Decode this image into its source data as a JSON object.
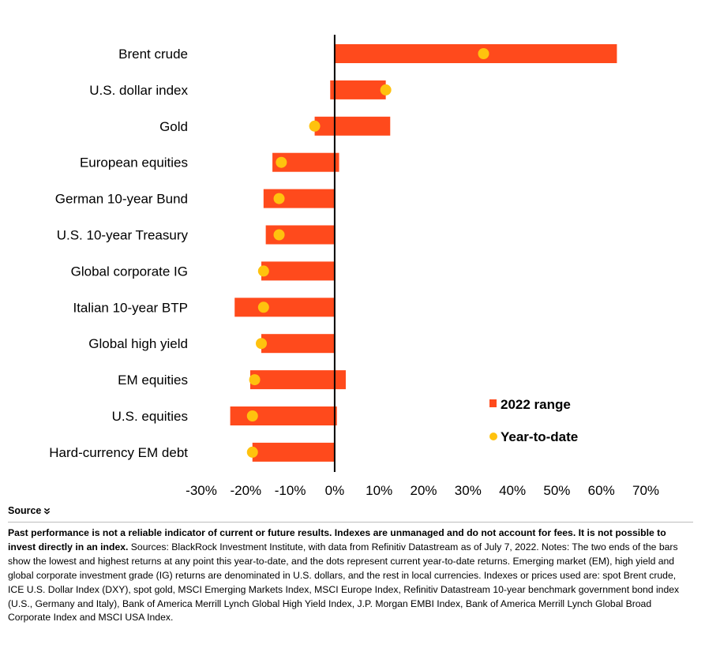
{
  "chart_data": {
    "type": "bar",
    "orientation": "horizontal",
    "subtype": "floating-range-with-dots",
    "categories": [
      "Brent crude",
      "U.S. dollar index",
      "Gold",
      "European equities",
      "German 10-year Bund",
      "U.S. 10-year Treasury",
      "Global corporate IG",
      "Italian 10-year BTP",
      "Global high yield",
      "EM equities",
      "U.S. equities",
      "Hard-currency EM debt"
    ],
    "series": [
      {
        "name": "2022 range",
        "type": "range-bar",
        "color": "#ff4a1c",
        "low": [
          0,
          -1,
          -4.5,
          -14,
          -16,
          -15.5,
          -16.5,
          -22.5,
          -16.5,
          -19,
          -23.5,
          -18.5
        ],
        "high": [
          63.5,
          11.5,
          12.5,
          1,
          0,
          0,
          0,
          0,
          0,
          2.5,
          0.5,
          0
        ]
      },
      {
        "name": "Year-to-date",
        "type": "dot",
        "color": "#ffc20e",
        "values": [
          33.5,
          11.5,
          -4.5,
          -12,
          -12.5,
          -12.5,
          -16,
          -16,
          -16.5,
          -18,
          -18.5,
          -18.5
        ]
      }
    ],
    "xlim": [
      -30,
      70
    ],
    "xticks": [
      -30,
      -20,
      -10,
      0,
      10,
      20,
      30,
      40,
      50,
      60,
      70
    ],
    "xtick_labels": [
      "-30%",
      "-20%",
      "-10%",
      "0%",
      "10%",
      "20%",
      "30%",
      "40%",
      "50%",
      "60%",
      "70%"
    ],
    "title": "",
    "xlabel": "",
    "ylabel": "",
    "grid": false,
    "legend_position": "bottom-right",
    "zero_line_color": "#000000"
  },
  "footer": {
    "source_label": "Source",
    "disclaimer": "Past performance is not a reliable indicator of current or future results. Indexes are unmanaged and do not account for fees. It is not possible to invest directly in an index.",
    "notes": " Sources: BlackRock Investment Institute, with data from Refinitiv Datastream as of July 7, 2022. Notes: The two ends of the bars show the lowest and highest returns at any point this year-to-date, and the dots represent current year-to-date returns. Emerging market (EM), high yield and global corporate investment grade (IG) returns are denominated in U.S. dollars, and the rest in local currencies. Indexes or prices used are: spot Brent crude, ICE U.S. Dollar Index (DXY), spot gold, MSCI Emerging Markets Index, MSCI Europe Index, Refinitiv Datastream 10-year benchmark government bond index (U.S., Germany and Italy), Bank of America Merrill Lynch Global High Yield Index, J.P. Morgan EMBI Index, Bank of America Merrill Lynch Global Broad Corporate Index and MSCI USA Index.",
    "chevron_icon": "double-chevron-down-icon"
  }
}
